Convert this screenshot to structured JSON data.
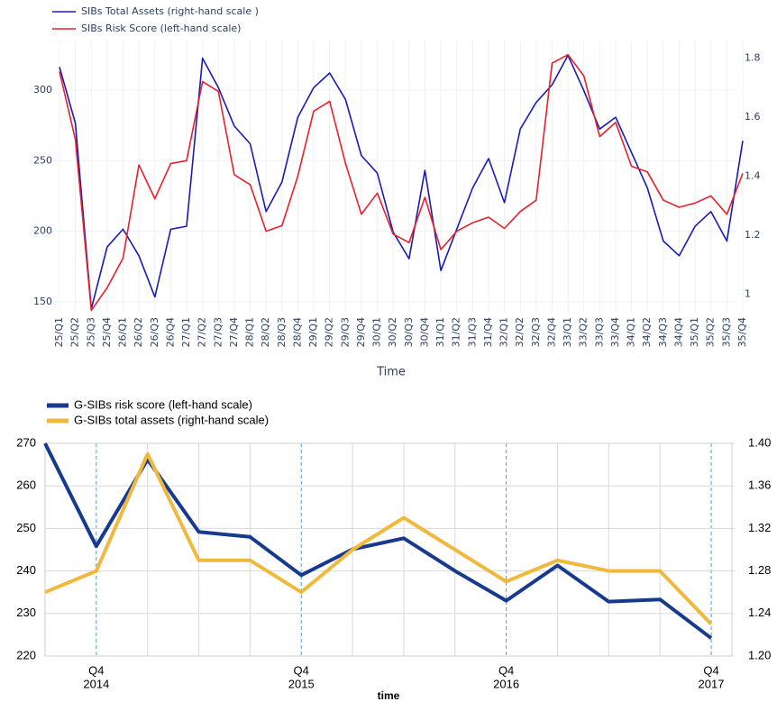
{
  "chart_data": [
    {
      "type": "line",
      "x_label": "Time",
      "legend": "top-left",
      "grid": true,
      "categories": [
        "25/Q1",
        "25/Q2",
        "25/Q3",
        "25/Q4",
        "26/Q1",
        "26/Q2",
        "26/Q3",
        "26/Q4",
        "27/Q1",
        "27/Q2",
        "27/Q3",
        "27/Q4",
        "28/Q1",
        "28/Q2",
        "28/Q3",
        "28/Q4",
        "29/Q1",
        "29/Q2",
        "29/Q3",
        "29/Q4",
        "30/Q1",
        "30/Q2",
        "30/Q3",
        "30/Q4",
        "31/Q1",
        "31/Q2",
        "31/Q3",
        "31/Q4",
        "32/Q1",
        "32/Q2",
        "32/Q3",
        "32/Q4",
        "33/Q1",
        "33/Q2",
        "33/Q3",
        "33/Q4",
        "34/Q1",
        "34/Q2",
        "34/Q3",
        "34/Q4",
        "35/Q1",
        "35/Q2",
        "35/Q3",
        "35/Q4"
      ],
      "ylim": [
        143,
        335
      ],
      "yticks": [
        150,
        200,
        250,
        300
      ],
      "y2lim": [
        0.94,
        1.86
      ],
      "y2ticks": [
        1,
        1.2,
        1.4,
        1.6,
        1.8
      ],
      "series": [
        {
          "name": "SIBs Total Assets (right-hand scale )",
          "color": "#1a1ab8",
          "axis": "y2",
          "values": [
            1.77,
            1.58,
            0.95,
            1.16,
            1.22,
            1.13,
            0.99,
            1.22,
            1.23,
            1.8,
            1.7,
            1.57,
            1.51,
            1.28,
            1.38,
            1.6,
            1.7,
            1.75,
            1.66,
            1.47,
            1.41,
            1.21,
            1.12,
            1.42,
            1.08,
            1.22,
            1.36,
            1.46,
            1.31,
            1.56,
            1.65,
            1.71,
            1.81,
            1.69,
            1.56,
            1.6,
            1.48,
            1.36,
            1.18,
            1.13,
            1.23,
            1.28,
            1.18,
            1.52
          ]
        },
        {
          "name": "SIBs Risk Score (left-hand scale)",
          "color": "#e8202a",
          "values": [
            313,
            265,
            144,
            160,
            181,
            247,
            223,
            248,
            250,
            306,
            299,
            240,
            233,
            200,
            204,
            239,
            285,
            292,
            248,
            212,
            227,
            198,
            192,
            224,
            187,
            200,
            206,
            210,
            202,
            214,
            222,
            319,
            325,
            310,
            267,
            277,
            246,
            242,
            222,
            217,
            220,
            225,
            212,
            241
          ]
        }
      ]
    },
    {
      "type": "line",
      "x_label": "time",
      "legend": "top-left",
      "grid": true,
      "categories": [
        null,
        "Q4",
        null,
        null,
        null,
        "Q4",
        null,
        null,
        null,
        "Q4",
        null,
        null,
        null,
        "Q4"
      ],
      "category_groups": [
        null,
        "2014",
        null,
        null,
        null,
        "2015",
        null,
        null,
        null,
        "2016",
        null,
        null,
        null,
        "2017"
      ],
      "ylim": [
        220,
        270
      ],
      "yticks": [
        220,
        230,
        240,
        250,
        260,
        270
      ],
      "y2lim": [
        1.2,
        1.4
      ],
      "y2ticks": [
        {
          "value": 1.2,
          "label": "1.20"
        },
        1.24,
        1.28,
        1.32,
        1.36,
        {
          "value": 1.4,
          "label": "1.40"
        }
      ],
      "series": [
        {
          "name": "G-SIBs risk score (left-hand scale)",
          "color": "#173a8f",
          "values": [
            270,
            245.8,
            266.2,
            249.2,
            248,
            239,
            245.1,
            247.7,
            240,
            233,
            241.3,
            232.8,
            233.3,
            224.2
          ]
        },
        {
          "name": "G-SIBs total assets (right-hand scale)",
          "color": "#f0b83c",
          "axis": "y2",
          "values": [
            1.26,
            1.28,
            1.39,
            1.29,
            1.29,
            1.26,
            1.3,
            1.33,
            1.3,
            1.27,
            1.29,
            1.28,
            1.28,
            1.23
          ]
        }
      ]
    }
  ]
}
